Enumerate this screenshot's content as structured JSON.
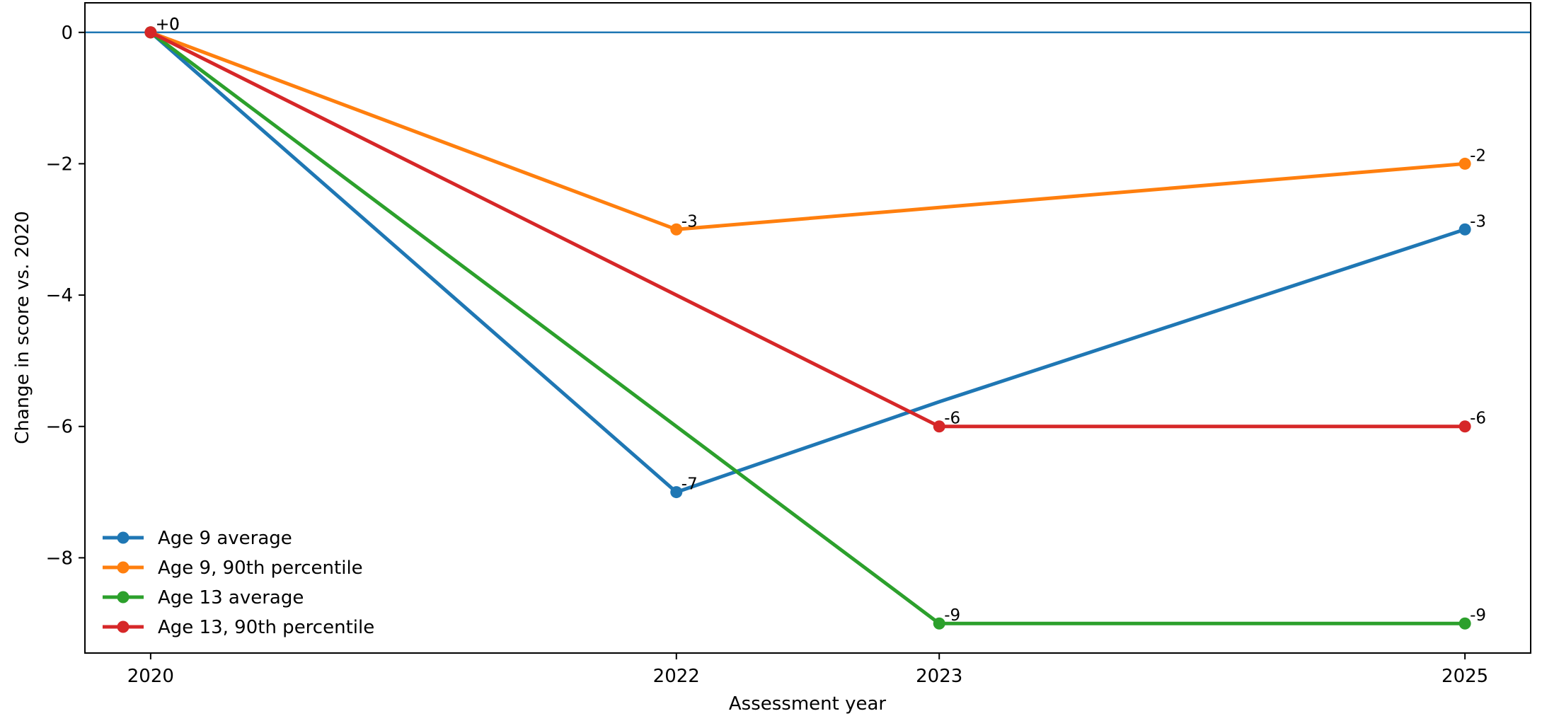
{
  "chart_data": {
    "type": "line",
    "title": "",
    "xlabel": "Assessment year",
    "ylabel": "Change in score vs. 2020",
    "x": [
      2020,
      2022,
      2023,
      2025
    ],
    "x_tick_labels": [
      "2020",
      "2022",
      "2023",
      "2025"
    ],
    "xlim": [
      2019.75,
      2025.25
    ],
    "ylim": [
      -9.45,
      0.45
    ],
    "y_ticks": [
      0,
      -2,
      -4,
      -6,
      -8
    ],
    "y_tick_labels": [
      "0",
      "−2",
      "−4",
      "−6",
      "−8"
    ],
    "reference_line": {
      "y": 0,
      "color": "#1f77b4"
    },
    "grid": false,
    "legend_position": "lower-left",
    "series": [
      {
        "name": "Age 9 average",
        "color": "#1f77b4",
        "values": [
          0,
          -7,
          -5.625,
          -3
        ],
        "marker_x": [
          2020,
          2022,
          2025
        ],
        "point_labels": [
          "+0",
          "-7",
          "",
          "-3"
        ]
      },
      {
        "name": "Age 9, 90th percentile",
        "color": "#ff7f0e",
        "values": [
          0,
          -3,
          -2.667,
          -2
        ],
        "marker_x": [
          2020,
          2022,
          2025
        ],
        "point_labels": [
          "+0",
          "-3",
          "",
          "-2"
        ]
      },
      {
        "name": "Age 13 average",
        "color": "#2ca02c",
        "values": [
          0,
          -6,
          -9,
          -9
        ],
        "marker_x": [
          2020,
          2023,
          2025
        ],
        "point_labels": [
          "+0",
          "",
          "-9",
          "-9"
        ]
      },
      {
        "name": "Age 13, 90th percentile",
        "color": "#d62728",
        "values": [
          0,
          -4,
          -6,
          -6
        ],
        "marker_x": [
          2020,
          2023,
          2025
        ],
        "point_labels": [
          "+0",
          "",
          "-6",
          "-6"
        ]
      }
    ]
  }
}
